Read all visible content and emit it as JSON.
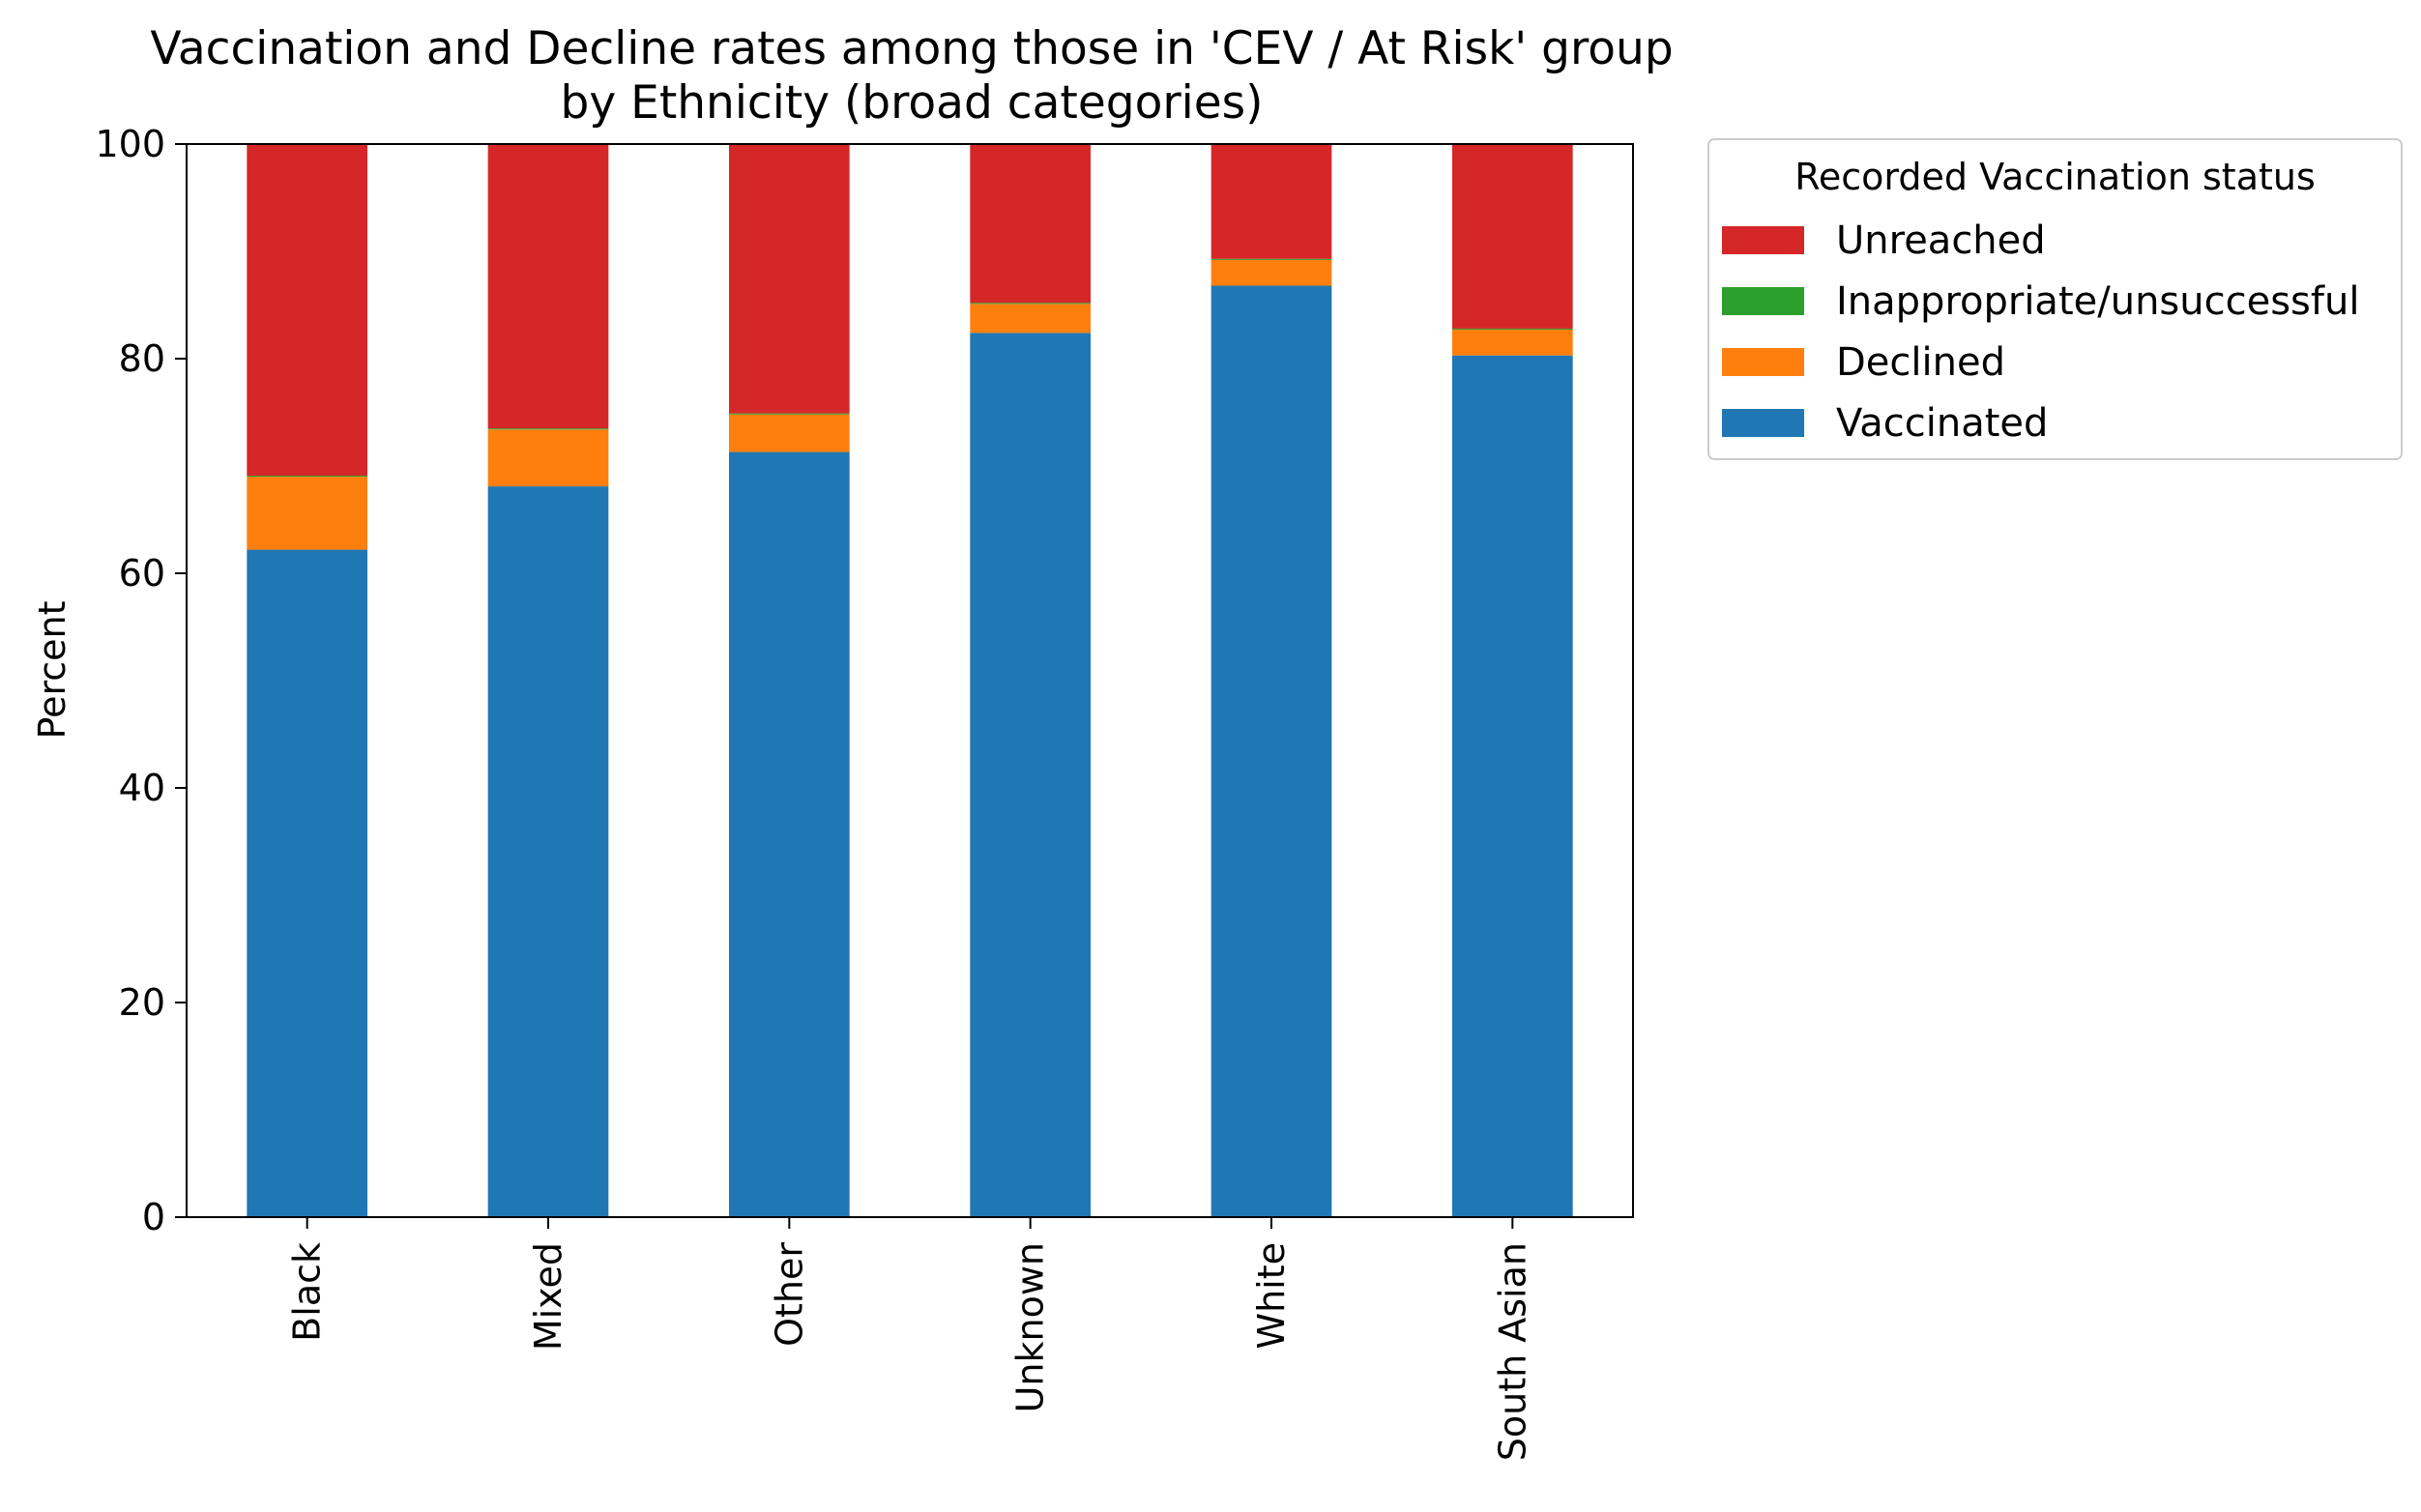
{
  "chart_data": {
    "type": "bar",
    "stacked": true,
    "title": "Vaccination and Decline rates among those in 'CEV / At Risk' group\nby Ethnicity (broad categories)",
    "title_lines": [
      "Vaccination and Decline rates among those in 'CEV / At Risk' group",
      "by Ethnicity (broad categories)"
    ],
    "xlabel": "",
    "ylabel": "Percent",
    "ylim": [
      0,
      100
    ],
    "yticks": [
      0,
      20,
      40,
      60,
      80,
      100
    ],
    "grid": false,
    "categories": [
      "Black",
      "Mixed",
      "Other",
      "Unknown",
      "White",
      "South Asian"
    ],
    "series": [
      {
        "name": "Vaccinated",
        "color": "#1f77b4",
        "values": [
          62.2,
          68.1,
          71.3,
          82.4,
          86.8,
          80.3
        ]
      },
      {
        "name": "Declined",
        "color": "#ff7f0e",
        "values": [
          6.8,
          5.3,
          3.5,
          2.7,
          2.4,
          2.4
        ]
      },
      {
        "name": "Inappropriate/unsuccessful",
        "color": "#2ca02c",
        "values": [
          0.1,
          0.1,
          0.1,
          0.1,
          0.1,
          0.1
        ]
      },
      {
        "name": "Unreached",
        "color": "#d62728",
        "values": [
          30.9,
          26.5,
          25.1,
          14.8,
          10.7,
          17.2
        ]
      }
    ],
    "legend": {
      "title": "Recorded Vaccination status",
      "placement": "outside-top-right",
      "entries": [
        "Unreached",
        "Inappropriate/unsuccessful",
        "Declined",
        "Vaccinated"
      ]
    }
  }
}
